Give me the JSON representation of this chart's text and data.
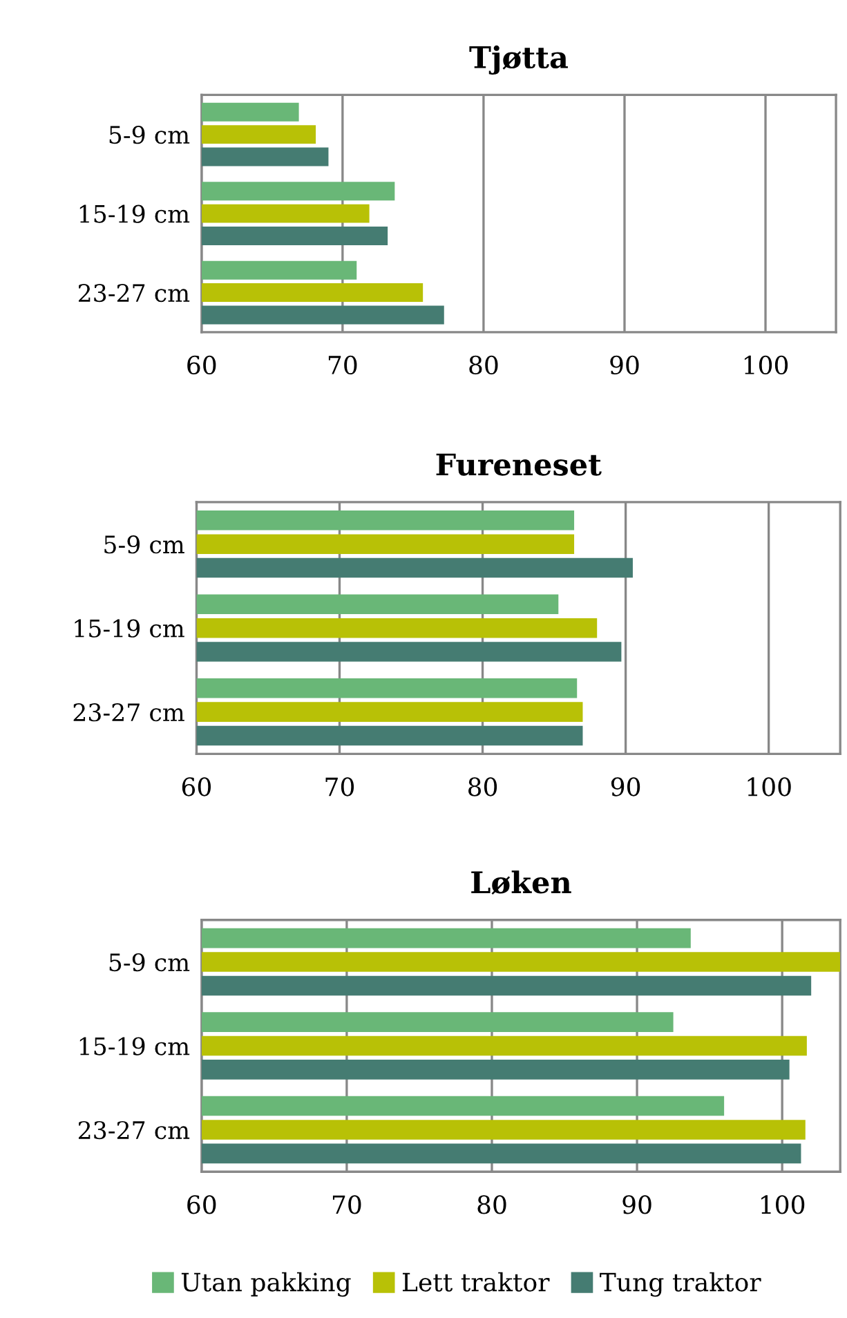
{
  "chart_data": [
    {
      "type": "bar",
      "orientation": "horizontal",
      "title": "Tjøtta",
      "categories": [
        "5-9 cm",
        "15-19 cm",
        "23-27 cm"
      ],
      "series": [
        {
          "color": "#69b777",
          "values": [
            66.9,
            73.7,
            71.0
          ]
        },
        {
          "color": "#b8c106",
          "values": [
            68.1,
            71.9,
            75.7
          ]
        },
        {
          "color": "#457c72",
          "values": [
            69.0,
            73.2,
            77.2
          ]
        }
      ],
      "xlim": [
        60,
        105
      ],
      "xticks": [
        60,
        70,
        80,
        90,
        100
      ],
      "grid": "x",
      "legend": false
    },
    {
      "type": "bar",
      "orientation": "horizontal",
      "title": "Fureneset",
      "categories": [
        "5-9 cm",
        "15-19 cm",
        "23-27 cm"
      ],
      "series": [
        {
          "color": "#69b777",
          "values": [
            86.4,
            85.3,
            86.6
          ]
        },
        {
          "color": "#b8c106",
          "values": [
            86.4,
            88.0,
            87.0
          ]
        },
        {
          "color": "#457c72",
          "values": [
            90.5,
            89.7,
            87.0
          ]
        }
      ],
      "xlim": [
        60,
        105
      ],
      "xticks": [
        60,
        70,
        80,
        90,
        100
      ],
      "grid": "x",
      "legend": false
    },
    {
      "type": "bar",
      "orientation": "horizontal",
      "title": "Løken",
      "categories": [
        "5-9 cm",
        "15-19 cm",
        "23-27 cm"
      ],
      "series": [
        {
          "name": "Utan pakking",
          "color": "#69b777",
          "values": [
            93.7,
            92.5,
            96.0
          ]
        },
        {
          "name": "Lett traktor",
          "color": "#b8c106",
          "values": [
            104,
            101.7,
            101.6
          ]
        },
        {
          "name": "Tung traktor",
          "color": "#457c72",
          "values": [
            102.0,
            100.5,
            101.3
          ]
        }
      ],
      "xlim": [
        60,
        104
      ],
      "xticks": [
        60,
        70,
        80,
        90,
        100
      ],
      "grid": "x",
      "legend": "bottom"
    }
  ]
}
